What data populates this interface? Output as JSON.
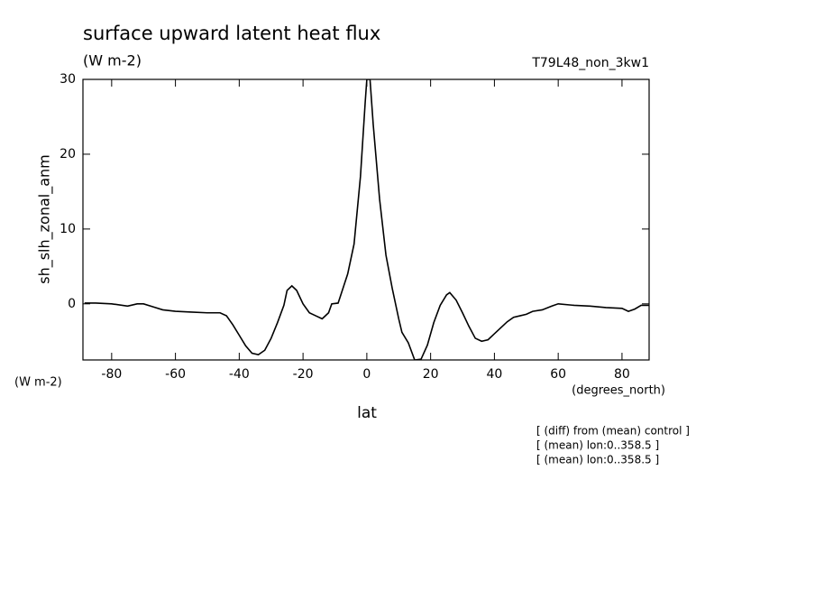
{
  "chart_data": {
    "type": "line",
    "title": "surface upward latent heat flux",
    "units": "(W m-2)",
    "run_label": "T79L48_non_3kw1",
    "ylabel": "sh_slh_zonal_anm",
    "y_units": "(W m-2)",
    "xlabel": "lat",
    "x_units": "(degrees_north)",
    "notes": [
      "[ (diff) from (mean) control ]",
      "[ (mean) lon:0..358.5 ]",
      "[ (mean) lon:0..358.5 ]"
    ],
    "x": [
      -88.5,
      -85,
      -80,
      -75,
      -72,
      -70,
      -67,
      -64,
      -60,
      -55,
      -50,
      -46,
      -44,
      -42,
      -40,
      -38,
      -36,
      -34,
      -32,
      -30,
      -28,
      -26,
      -25,
      -23.5,
      -22,
      -20,
      -18,
      -16,
      -14,
      -12,
      -11,
      -9,
      -8,
      -6,
      -4,
      -2,
      -0.5,
      0,
      1,
      2,
      4,
      6,
      8,
      10,
      11,
      13,
      15,
      17,
      19,
      21,
      23,
      25,
      26,
      28,
      30,
      32,
      34,
      36,
      38,
      40,
      42,
      44,
      46,
      48,
      50,
      52,
      55,
      58,
      60,
      65,
      70,
      75,
      80,
      82,
      84,
      86,
      88.5
    ],
    "series": [
      {
        "color": "#000000",
        "values": [
          0.1,
          0.1,
          0.0,
          -0.3,
          0.0,
          0.0,
          -0.4,
          -0.8,
          -1.0,
          -1.1,
          -1.2,
          -1.2,
          -1.6,
          -2.8,
          -4.2,
          -5.6,
          -6.6,
          -6.8,
          -6.2,
          -4.6,
          -2.5,
          -0.2,
          1.8,
          2.4,
          1.8,
          0.0,
          -1.2,
          -1.6,
          -2.0,
          -1.2,
          0.0,
          0.1,
          1.4,
          4.0,
          8.0,
          17.0,
          27.0,
          30.0,
          30.0,
          24.0,
          14.0,
          6.5,
          2.0,
          -2.0,
          -3.8,
          -5.2,
          -7.5,
          -7.4,
          -5.5,
          -2.5,
          -0.2,
          1.2,
          1.5,
          0.5,
          -1.2,
          -3.0,
          -4.6,
          -5.0,
          -4.8,
          -4.0,
          -3.2,
          -2.4,
          -1.8,
          -1.6,
          -1.4,
          -1.0,
          -0.8,
          -0.3,
          0.0,
          -0.2,
          -0.3,
          -0.5,
          -0.6,
          -1.0,
          -0.7,
          -0.2,
          -0.2
        ]
      }
    ],
    "xlim": [
      -89,
      88.5
    ],
    "xticks": [
      -80,
      -60,
      -40,
      -20,
      0,
      20,
      40,
      60,
      80
    ],
    "ylim": [
      -7.5,
      30
    ],
    "yticks": [
      0,
      10,
      20,
      30
    ]
  }
}
